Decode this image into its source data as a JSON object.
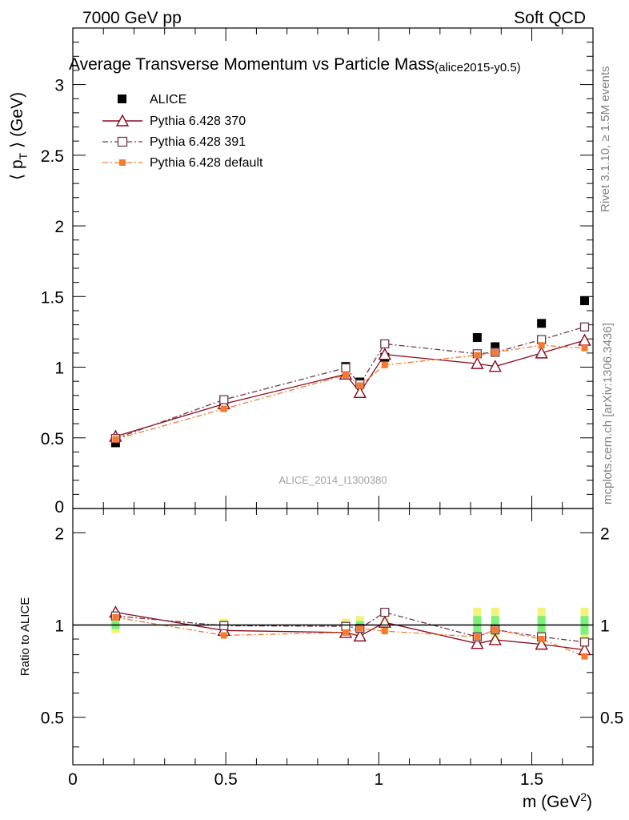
{
  "header": {
    "left": "7000 GeV pp",
    "right": "Soft QCD"
  },
  "side_labels": {
    "rivet": "Rivet 3.1.10, ≥ 1.5M events",
    "mcplots": "mcplots.cern.ch [arXiv:1306.3436]"
  },
  "colors": {
    "alice": "#000000",
    "p370": "#8b0a1e",
    "p391": "#6b3a4c",
    "pdef": "#f57a2e",
    "band_inner": "#7cf07c",
    "band_outer": "#f0f57a"
  },
  "chart_data": [
    {
      "type": "scatter",
      "title": "Average Transverse Momentum vs Particle Mass",
      "subtitle": "(alice2015-y0.5)",
      "watermark": "ALICE_2014_I1300380",
      "xlabel": "m (GeV",
      "xlabel_sup": "2",
      "xlabel_close": ")",
      "ylabel": "⟨ p",
      "ylabel_sub": "T",
      "ylabel_rest": " ⟩ (GeV)",
      "xlim": [
        0,
        1.7
      ],
      "ylim": [
        0,
        3.4
      ],
      "y_ticks": [
        "0.5",
        "1",
        "1.5",
        "2",
        "2.5",
        "3"
      ],
      "y_tick_values": [
        0.5,
        1,
        1.5,
        2,
        2.5,
        3
      ],
      "y_zero_label": "0",
      "x": [
        0.1396,
        0.4937,
        0.8917,
        0.9383,
        1.0195,
        1.3217,
        1.3802,
        1.5317,
        1.6725
      ],
      "series": [
        {
          "name": "ALICE",
          "marker": "square-filled",
          "line": "none",
          "values": [
            0.465,
            0.765,
            1.005,
            0.895,
            1.07,
            1.21,
            1.145,
            1.31,
            1.47
          ]
        },
        {
          "name": "Pythia 6.428 370",
          "marker": "triangle-open",
          "line": "solid",
          "values": [
            0.51,
            0.74,
            0.95,
            0.82,
            1.09,
            1.025,
            1.005,
            1.1,
            1.19
          ]
        },
        {
          "name": "Pythia 6.428 391",
          "marker": "square-open",
          "line": "dashdot",
          "values": [
            0.495,
            0.77,
            0.995,
            0.88,
            1.165,
            1.095,
            1.105,
            1.195,
            1.285
          ]
        },
        {
          "name": "Pythia 6.428 default",
          "marker": "square-filled-small",
          "line": "dashdot",
          "values": [
            0.49,
            0.705,
            0.945,
            0.87,
            1.015,
            1.085,
            1.105,
            1.155,
            1.135
          ]
        }
      ]
    },
    {
      "type": "scatter",
      "ylabel": "Ratio to ALICE",
      "xlim": [
        0,
        1.7
      ],
      "ylim": [
        0.35,
        2.4
      ],
      "y_ticks": [
        "0.5",
        "1",
        "2"
      ],
      "y_tick_values": [
        0.5,
        1,
        2
      ],
      "x_ticks": [
        "0",
        "0.5",
        "1",
        "1.5"
      ],
      "x_tick_values": [
        0,
        0.5,
        1,
        1.5
      ],
      "x": [
        0.1396,
        0.4937,
        0.8917,
        0.9383,
        1.0195,
        1.3217,
        1.3802,
        1.5317,
        1.6725
      ],
      "band_inner_halfwidth": [
        0.03,
        0.03,
        0.02,
        0.03,
        0.02,
        0.07,
        0.07,
        0.07,
        0.07
      ],
      "band_outer_halfwidth": [
        0.06,
        0.05,
        0.05,
        0.07,
        0.05,
        0.14,
        0.14,
        0.14,
        0.14
      ],
      "series": [
        {
          "name": "Pythia 6.428 370",
          "values": [
            1.1,
            0.96,
            0.945,
            0.92,
            1.02,
            0.87,
            0.895,
            0.865,
            0.83
          ]
        },
        {
          "name": "Pythia 6.428 391",
          "values": [
            1.07,
            0.995,
            0.99,
            0.975,
            1.1,
            0.915,
            0.965,
            0.915,
            0.88
          ]
        },
        {
          "name": "Pythia 6.428 default",
          "values": [
            1.06,
            0.925,
            0.945,
            0.975,
            0.955,
            0.915,
            0.965,
            0.9,
            0.79
          ]
        }
      ]
    }
  ]
}
